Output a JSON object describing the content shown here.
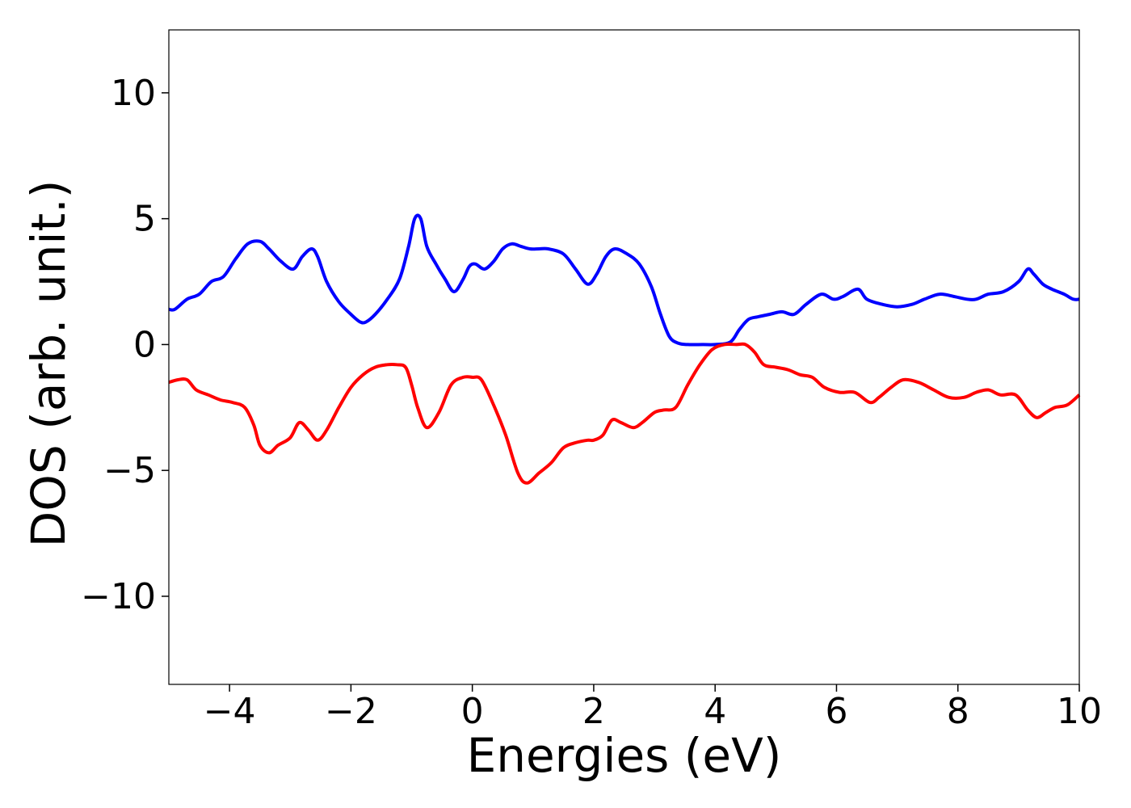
{
  "chart_data": {
    "type": "line",
    "title": "",
    "xlabel": "Energies (eV)",
    "ylabel": "DOS (arb. unit.)",
    "xlim": [
      -5,
      10
    ],
    "ylim": [
      -13.5,
      12.5
    ],
    "grid": false,
    "legend": "none",
    "x_ticks": [
      -4,
      -2,
      0,
      2,
      4,
      6,
      8,
      10
    ],
    "x_tick_labels": [
      "−4",
      "−2",
      "0",
      "2",
      "4",
      "6",
      "8",
      "10"
    ],
    "y_ticks": [
      -10,
      -5,
      0,
      5,
      10
    ],
    "y_tick_labels": [
      "−10",
      "−5",
      "0",
      "5",
      "10"
    ],
    "series": [
      {
        "color": "#0000ff",
        "x": [
          -5.0,
          -4.9,
          -4.7,
          -4.5,
          -4.3,
          -4.1,
          -3.9,
          -3.7,
          -3.5,
          -3.35,
          -3.15,
          -2.95,
          -2.8,
          -2.65,
          -2.55,
          -2.4,
          -2.2,
          -2.0,
          -1.85,
          -1.75,
          -1.6,
          -1.4,
          -1.2,
          -1.05,
          -0.95,
          -0.85,
          -0.75,
          -0.6,
          -0.45,
          -0.3,
          -0.15,
          -0.05,
          0.05,
          0.2,
          0.35,
          0.5,
          0.65,
          0.8,
          0.95,
          1.1,
          1.25,
          1.5,
          1.7,
          1.9,
          2.05,
          2.2,
          2.35,
          2.55,
          2.75,
          2.95,
          3.1,
          3.25,
          3.4,
          3.55,
          3.8,
          4.0,
          4.25,
          4.4,
          4.55,
          4.7,
          4.9,
          5.1,
          5.3,
          5.5,
          5.75,
          5.95,
          6.1,
          6.35,
          6.5,
          6.75,
          7.0,
          7.25,
          7.45,
          7.7,
          7.95,
          8.15,
          8.3,
          8.5,
          8.75,
          9.0,
          9.15,
          9.25,
          9.4,
          9.55,
          9.75,
          9.9,
          10.0
        ],
        "y": [
          1.4,
          1.4,
          1.8,
          2.0,
          2.5,
          2.7,
          3.4,
          4.0,
          4.1,
          3.8,
          3.3,
          3.0,
          3.5,
          3.8,
          3.5,
          2.5,
          1.7,
          1.2,
          0.9,
          0.9,
          1.2,
          1.8,
          2.6,
          3.9,
          5.0,
          5.0,
          3.9,
          3.2,
          2.6,
          2.1,
          2.6,
          3.1,
          3.2,
          3.0,
          3.3,
          3.8,
          4.0,
          3.9,
          3.8,
          3.8,
          3.8,
          3.6,
          3.0,
          2.4,
          2.8,
          3.5,
          3.8,
          3.6,
          3.2,
          2.3,
          1.2,
          0.3,
          0.05,
          0.0,
          0.0,
          0.0,
          0.1,
          0.6,
          1.0,
          1.1,
          1.2,
          1.3,
          1.2,
          1.6,
          2.0,
          1.8,
          1.9,
          2.2,
          1.8,
          1.6,
          1.5,
          1.6,
          1.8,
          2.0,
          1.9,
          1.8,
          1.8,
          2.0,
          2.1,
          2.5,
          3.0,
          2.8,
          2.4,
          2.2,
          2.0,
          1.8,
          1.8
        ]
      },
      {
        "color": "#ff0000",
        "x": [
          -5.0,
          -4.85,
          -4.7,
          -4.55,
          -4.35,
          -4.15,
          -3.95,
          -3.75,
          -3.6,
          -3.5,
          -3.35,
          -3.2,
          -3.0,
          -2.85,
          -2.7,
          -2.55,
          -2.4,
          -2.2,
          -2.0,
          -1.8,
          -1.6,
          -1.4,
          -1.25,
          -1.1,
          -1.0,
          -0.9,
          -0.75,
          -0.55,
          -0.35,
          -0.15,
          0.0,
          0.15,
          0.35,
          0.55,
          0.75,
          0.9,
          1.1,
          1.3,
          1.5,
          1.7,
          1.9,
          2.0,
          2.15,
          2.3,
          2.45,
          2.65,
          2.8,
          3.0,
          3.15,
          3.35,
          3.55,
          3.75,
          3.95,
          4.15,
          4.35,
          4.5,
          4.65,
          4.8,
          5.0,
          5.2,
          5.4,
          5.6,
          5.8,
          6.05,
          6.3,
          6.55,
          6.7,
          6.9,
          7.1,
          7.35,
          7.6,
          7.85,
          8.1,
          8.3,
          8.5,
          8.7,
          8.95,
          9.15,
          9.3,
          9.45,
          9.6,
          9.8,
          10.0
        ],
        "y": [
          -1.5,
          -1.4,
          -1.4,
          -1.8,
          -2.0,
          -2.2,
          -2.3,
          -2.5,
          -3.2,
          -4.0,
          -4.3,
          -4.0,
          -3.7,
          -3.1,
          -3.4,
          -3.8,
          -3.4,
          -2.5,
          -1.7,
          -1.2,
          -0.9,
          -0.8,
          -0.8,
          -0.9,
          -1.6,
          -2.5,
          -3.3,
          -2.7,
          -1.6,
          -1.3,
          -1.3,
          -1.4,
          -2.4,
          -3.6,
          -5.1,
          -5.5,
          -5.1,
          -4.7,
          -4.1,
          -3.9,
          -3.8,
          -3.8,
          -3.6,
          -3.0,
          -3.1,
          -3.3,
          -3.1,
          -2.7,
          -2.6,
          -2.5,
          -1.6,
          -0.8,
          -0.2,
          0.0,
          0.0,
          0.0,
          -0.3,
          -0.8,
          -0.9,
          -1.0,
          -1.2,
          -1.3,
          -1.7,
          -1.9,
          -1.9,
          -2.3,
          -2.1,
          -1.7,
          -1.4,
          -1.5,
          -1.8,
          -2.1,
          -2.1,
          -1.9,
          -1.8,
          -2.0,
          -2.0,
          -2.6,
          -2.9,
          -2.7,
          -2.5,
          -2.4,
          -2.0
        ]
      }
    ]
  }
}
